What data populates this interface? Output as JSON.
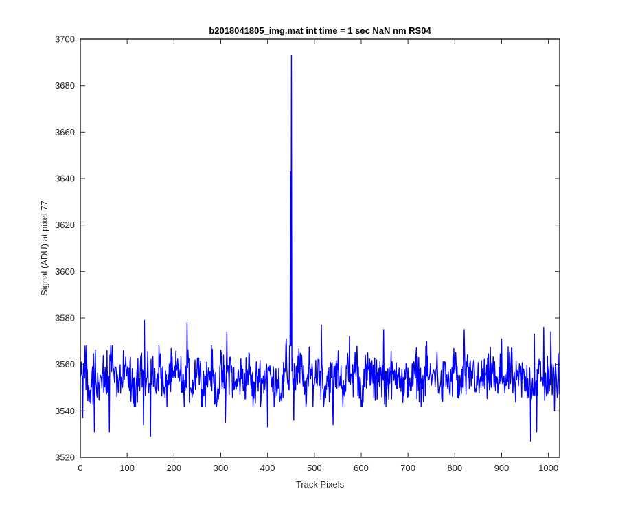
{
  "chart_data": {
    "type": "line",
    "title": "b2018041805_img.mat int time = 1 sec  NaN nm RS04",
    "xlabel": "Track Pixels",
    "ylabel": "Signal (ADU) at pixel 77",
    "xlim": [
      0,
      1024
    ],
    "ylim": [
      3520,
      3700
    ],
    "xticks": [
      0,
      100,
      200,
      300,
      400,
      500,
      600,
      700,
      800,
      900,
      1000
    ],
    "yticks": [
      3520,
      3540,
      3560,
      3580,
      3600,
      3620,
      3640,
      3660,
      3680,
      3700
    ],
    "grid": false,
    "line_color": "#0000ff",
    "series": [
      {
        "x": [
          0,
          10,
          20,
          30,
          40,
          50,
          60,
          70,
          80,
          90,
          100,
          110,
          120,
          130,
          140,
          150,
          160,
          170,
          180,
          190,
          200,
          210,
          220,
          230,
          240,
          250,
          260,
          270,
          280,
          290,
          300,
          310,
          320,
          330,
          340,
          350,
          360,
          370,
          380,
          390,
          400,
          410,
          420,
          430,
          440,
          446,
          449,
          451,
          452,
          454,
          460,
          470,
          480,
          490,
          500,
          510,
          520,
          530,
          540,
          550,
          560,
          570,
          580,
          590,
          600,
          610,
          620,
          630,
          640,
          650,
          660,
          670,
          680,
          690,
          700,
          710,
          720,
          730,
          740,
          750,
          760,
          770,
          780,
          790,
          800,
          810,
          820,
          830,
          840,
          850,
          860,
          870,
          880,
          890,
          900,
          910,
          920,
          930,
          940,
          950,
          960,
          970,
          980,
          990,
          1000,
          1010,
          1020,
          1024
        ],
        "y": [
          3553,
          3561,
          3546,
          3558,
          3549,
          3556,
          3551,
          3562,
          3548,
          3555,
          3559,
          3547,
          3554,
          3560,
          3549,
          3557,
          3552,
          3561,
          3546,
          3556,
          3553,
          3559,
          3548,
          3555,
          3551,
          3562,
          3550,
          3554,
          3558,
          3547,
          3556,
          3552,
          3560,
          3549,
          3555,
          3553,
          3558,
          3547,
          3556,
          3552,
          3559,
          3551,
          3555,
          3549,
          3557,
          3553,
          3643,
          3693,
          3562,
          3556,
          3554,
          3559,
          3548,
          3556,
          3553,
          3560,
          3549,
          3555,
          3552,
          3558,
          3550,
          3556,
          3553,
          3561,
          3548,
          3555,
          3557,
          3551,
          3559,
          3549,
          3556,
          3553,
          3560,
          3548,
          3555,
          3552,
          3558,
          3550,
          3556,
          3553,
          3559,
          3549,
          3555,
          3551,
          3560,
          3548,
          3556,
          3553,
          3558,
          3550,
          3555,
          3552,
          3559,
          3549,
          3556,
          3553,
          3558,
          3550,
          3555,
          3552,
          3554,
          3551,
          3557,
          3550,
          3556,
          3552,
          3555,
          3553
        ]
      }
    ],
    "extremes": [
      {
        "x": 5,
        "y": 3537
      },
      {
        "x": 13,
        "y": 3568
      },
      {
        "x": 30,
        "y": 3531
      },
      {
        "x": 57,
        "y": 3566
      },
      {
        "x": 62,
        "y": 3531
      },
      {
        "x": 92,
        "y": 3566
      },
      {
        "x": 135,
        "y": 3534
      },
      {
        "x": 137,
        "y": 3579
      },
      {
        "x": 150,
        "y": 3529
      },
      {
        "x": 228,
        "y": 3578
      },
      {
        "x": 310,
        "y": 3535
      },
      {
        "x": 313,
        "y": 3574
      },
      {
        "x": 400,
        "y": 3533
      },
      {
        "x": 440,
        "y": 3571
      },
      {
        "x": 456,
        "y": 3536
      },
      {
        "x": 515,
        "y": 3577
      },
      {
        "x": 540,
        "y": 3534
      },
      {
        "x": 575,
        "y": 3572
      },
      {
        "x": 648,
        "y": 3575
      },
      {
        "x": 740,
        "y": 3570
      },
      {
        "x": 820,
        "y": 3575
      },
      {
        "x": 900,
        "y": 3571
      },
      {
        "x": 962,
        "y": 3527
      },
      {
        "x": 970,
        "y": 3573
      },
      {
        "x": 975,
        "y": 3531
      },
      {
        "x": 990,
        "y": 3576
      },
      {
        "x": 1005,
        "y": 3574
      },
      {
        "x": 1013,
        "y": 3540
      }
    ],
    "noise_band": [
      3542,
      3568
    ]
  }
}
